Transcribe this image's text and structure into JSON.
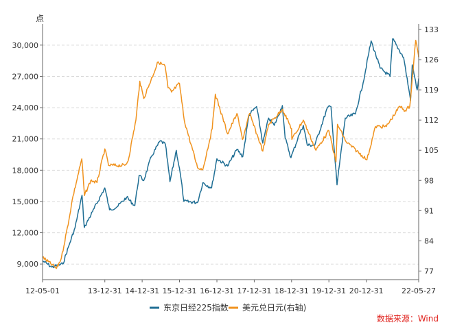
{
  "chart_data": {
    "type": "line",
    "left_axis_unit": "点",
    "x_start": "2012-05-01",
    "x_end": "2022-05-27",
    "x_tick_labels": [
      "12-05-01",
      "13-12-31",
      "14-12-31",
      "15-12-31",
      "16-12-31",
      "17-12-31",
      "18-12-31",
      "19-12-31",
      "20-12-31",
      "22-05-27"
    ],
    "x_tick_dates": [
      "2012-05-01",
      "2013-12-31",
      "2014-12-31",
      "2015-12-31",
      "2016-12-31",
      "2017-12-31",
      "2018-12-31",
      "2019-12-31",
      "2020-12-31",
      "2022-05-27"
    ],
    "y_left": {
      "min": 7500,
      "max": 31500,
      "ticks": [
        9000,
        12000,
        15000,
        18000,
        21000,
        24000,
        27000,
        30000
      ],
      "tick_labels": [
        "9,000",
        "12,000",
        "15,000",
        "18,000",
        "21,000",
        "24,000",
        "27,000",
        "30,000"
      ]
    },
    "y_right": {
      "min": 75,
      "max": 133,
      "ticks": [
        77,
        84,
        91,
        98,
        105,
        112,
        119,
        126,
        133
      ],
      "tick_labels": [
        "77",
        "84",
        "91",
        "98",
        "105",
        "112",
        "119",
        "126",
        "133"
      ]
    },
    "grid": "horizontal dashed",
    "legend_position": "bottom-center",
    "series": [
      {
        "name": "东京日经225指数",
        "axis": "left",
        "color": "#1f6e94",
        "points": [
          [
            "2012-05-01",
            9300
          ],
          [
            "2012-08-01",
            8700
          ],
          [
            "2012-11-15",
            9000
          ],
          [
            "2013-01-15",
            10800
          ],
          [
            "2013-03-15",
            12500
          ],
          [
            "2013-05-22",
            15600
          ],
          [
            "2013-06-13",
            12500
          ],
          [
            "2013-09-01",
            14000
          ],
          [
            "2013-12-31",
            16300
          ],
          [
            "2014-02-15",
            14200
          ],
          [
            "2014-05-01",
            14500
          ],
          [
            "2014-08-01",
            15400
          ],
          [
            "2014-10-20",
            14600
          ],
          [
            "2014-12-01",
            17500
          ],
          [
            "2015-01-15",
            17000
          ],
          [
            "2015-03-31",
            19300
          ],
          [
            "2015-06-24",
            20800
          ],
          [
            "2015-08-15",
            20500
          ],
          [
            "2015-09-29",
            16900
          ],
          [
            "2015-11-30",
            19900
          ],
          [
            "2016-01-15",
            17200
          ],
          [
            "2016-02-12",
            15000
          ],
          [
            "2016-06-24",
            14900
          ],
          [
            "2016-08-15",
            16800
          ],
          [
            "2016-11-09",
            16300
          ],
          [
            "2016-12-31",
            19100
          ],
          [
            "2017-04-15",
            18400
          ],
          [
            "2017-07-15",
            20000
          ],
          [
            "2017-09-10",
            19300
          ],
          [
            "2017-11-09",
            23300
          ],
          [
            "2018-01-23",
            24100
          ],
          [
            "2018-03-25",
            20600
          ],
          [
            "2018-05-21",
            23000
          ],
          [
            "2018-07-15",
            22300
          ],
          [
            "2018-10-02",
            24200
          ],
          [
            "2018-10-29",
            21100
          ],
          [
            "2018-12-25",
            19200
          ],
          [
            "2019-03-15",
            21400
          ],
          [
            "2019-04-25",
            22300
          ],
          [
            "2019-06-03",
            20400
          ],
          [
            "2019-08-15",
            20400
          ],
          [
            "2019-12-17",
            24000
          ],
          [
            "2020-01-20",
            24100
          ],
          [
            "2020-03-19",
            16600
          ],
          [
            "2020-06-08",
            23000
          ],
          [
            "2020-09-15",
            23400
          ],
          [
            "2020-11-30",
            26400
          ],
          [
            "2021-02-16",
            30400
          ],
          [
            "2021-05-15",
            27800
          ],
          [
            "2021-08-20",
            27000
          ],
          [
            "2021-09-14",
            30600
          ],
          [
            "2021-12-31",
            28800
          ],
          [
            "2022-03-09",
            24700
          ],
          [
            "2022-03-25",
            28100
          ],
          [
            "2022-05-12",
            25700
          ],
          [
            "2022-05-27",
            26800
          ]
        ]
      },
      {
        "name": "美元兑日元(右轴)",
        "axis": "right",
        "color": "#f0921d",
        "points": [
          [
            "2012-05-01",
            80.2
          ],
          [
            "2012-09-15",
            77.6
          ],
          [
            "2012-11-01",
            80.0
          ],
          [
            "2013-01-15",
            89.0
          ],
          [
            "2013-02-15",
            93.5
          ],
          [
            "2013-05-20",
            103.0
          ],
          [
            "2013-06-15",
            94.5
          ],
          [
            "2013-08-15",
            98.0
          ],
          [
            "2013-10-15",
            97.5
          ],
          [
            "2013-12-31",
            105.3
          ],
          [
            "2014-02-05",
            101.5
          ],
          [
            "2014-07-15",
            101.5
          ],
          [
            "2014-08-15",
            102.5
          ],
          [
            "2014-10-31",
            112.0
          ],
          [
            "2014-12-08",
            121.0
          ],
          [
            "2015-01-15",
            117.0
          ],
          [
            "2015-06-05",
            125.5
          ],
          [
            "2015-08-12",
            124.5
          ],
          [
            "2015-09-10",
            119.5
          ],
          [
            "2015-10-15",
            118.5
          ],
          [
            "2015-12-31",
            120.5
          ],
          [
            "2016-02-15",
            112.0
          ],
          [
            "2016-06-24",
            101.0
          ],
          [
            "2016-08-15",
            100.5
          ],
          [
            "2016-11-15",
            110.0
          ],
          [
            "2016-12-15",
            118.0
          ],
          [
            "2017-04-15",
            108.8
          ],
          [
            "2017-07-15",
            113.5
          ],
          [
            "2017-09-08",
            107.5
          ],
          [
            "2017-11-15",
            113.5
          ],
          [
            "2018-03-25",
            104.8
          ],
          [
            "2018-05-21",
            111.0
          ],
          [
            "2018-10-04",
            114.5
          ],
          [
            "2018-12-31",
            110.0
          ],
          [
            "2019-01-03",
            107.5
          ],
          [
            "2019-04-25",
            112.0
          ],
          [
            "2019-08-26",
            105.0
          ],
          [
            "2019-12-31",
            109.5
          ],
          [
            "2020-03-09",
            102.3
          ],
          [
            "2020-03-24",
            111.0
          ],
          [
            "2020-06-15",
            107.0
          ],
          [
            "2021-01-06",
            102.8
          ],
          [
            "2021-03-31",
            110.5
          ],
          [
            "2021-07-15",
            110.5
          ],
          [
            "2021-11-24",
            115.2
          ],
          [
            "2022-01-15",
            114.2
          ],
          [
            "2022-03-01",
            115.2
          ],
          [
            "2022-04-28",
            130.5
          ],
          [
            "2022-05-25",
            127.0
          ],
          [
            "2022-05-27",
            126.9
          ]
        ]
      }
    ],
    "source_label": "数据来源：Wind",
    "source_color": "#e0201b"
  }
}
